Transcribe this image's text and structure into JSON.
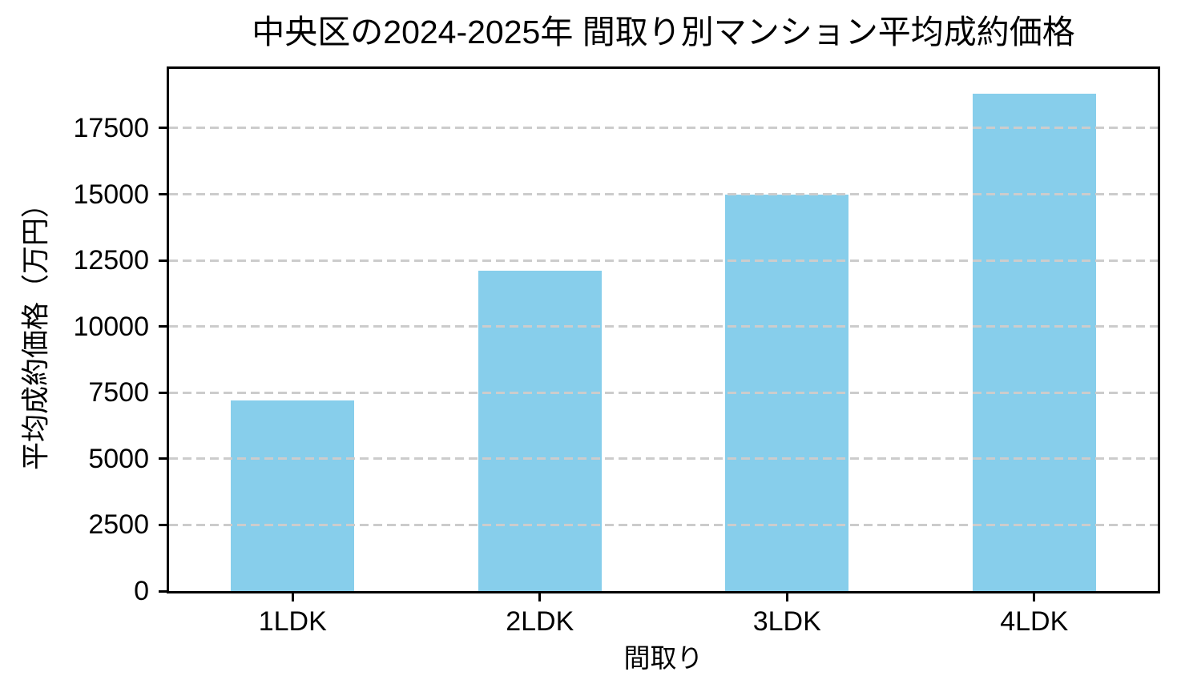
{
  "chart_data": {
    "type": "bar",
    "title": "中央区の2024-2025年 間取り別マンション平均成約価格",
    "categories": [
      "1LDK",
      "2LDK",
      "3LDK",
      "4LDK"
    ],
    "values": [
      7200,
      12100,
      15000,
      18800
    ],
    "xlabel": "間取り",
    "ylabel": "平均成約価格（万円）",
    "ylim": [
      0,
      19740
    ],
    "yticks": [
      0,
      2500,
      5000,
      7500,
      10000,
      12500,
      15000,
      17500
    ],
    "grid": true,
    "legend": "none",
    "bar_color": "#87CEEB",
    "gridline_color": "#cccccc",
    "axis_color": "#000000",
    "background_color": "#ffffff",
    "bar_width_fraction": 0.5
  }
}
